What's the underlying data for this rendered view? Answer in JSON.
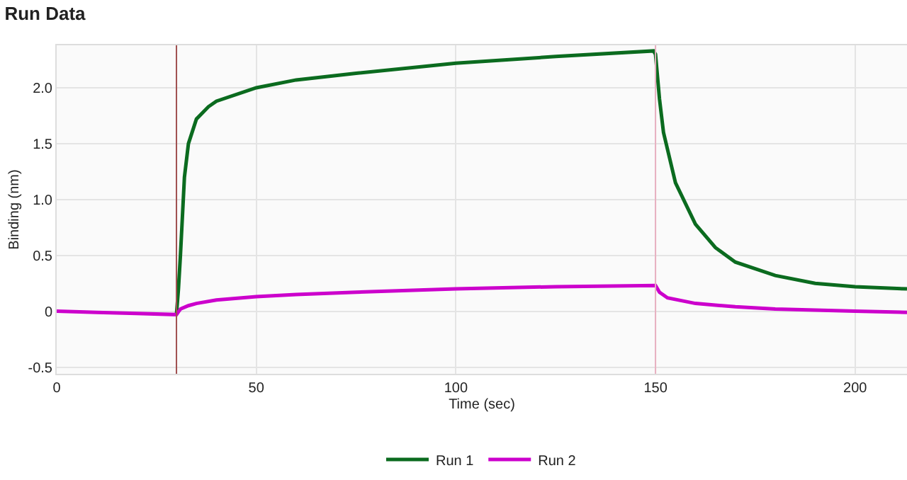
{
  "chart_data": {
    "type": "line",
    "title": "Run Data",
    "xlabel": "Time (sec)",
    "ylabel": "Binding (nm)",
    "xlim": [
      0,
      213
    ],
    "ylim": [
      -0.56,
      2.38
    ],
    "xticks": [
      0,
      50,
      100,
      150,
      200
    ],
    "yticks": [
      {
        "value": -0.5,
        "label": "-0.5"
      },
      0,
      {
        "value": 0.5,
        "label": "0.5"
      },
      {
        "value": 1.0,
        "label": "1.0"
      },
      {
        "value": 1.5,
        "label": "1.5"
      },
      {
        "value": 2.0,
        "label": "2.0"
      }
    ],
    "grid": true,
    "legend": "bottom",
    "marker": "none",
    "line_style": "solid",
    "ref_lines": [
      {
        "axis": "x",
        "value": 30,
        "color": "#a05050"
      },
      {
        "axis": "x",
        "value": 150,
        "color": "#e8b0c0"
      }
    ],
    "series": [
      {
        "name": "Run 1",
        "color": "#0b6b1f",
        "x": [
          30,
          30.5,
          31,
          32,
          33,
          35,
          38,
          40,
          50,
          60,
          75,
          100,
          125,
          149.5,
          150,
          151,
          152,
          155,
          160,
          165,
          170,
          180,
          190,
          200,
          213
        ],
        "values": [
          -0.03,
          0.2,
          0.5,
          1.2,
          1.5,
          1.72,
          1.83,
          1.88,
          2.0,
          2.07,
          2.13,
          2.22,
          2.28,
          2.33,
          2.3,
          1.9,
          1.6,
          1.15,
          0.78,
          0.57,
          0.44,
          0.32,
          0.25,
          0.22,
          0.2
        ]
      },
      {
        "name": "Run 2",
        "color": "#cc00cc",
        "x": [
          0,
          10,
          20,
          30,
          31,
          33,
          35,
          40,
          50,
          60,
          75,
          100,
          125,
          150,
          151,
          153,
          160,
          170,
          180,
          200,
          213
        ],
        "values": [
          0.0,
          -0.01,
          -0.02,
          -0.03,
          0.02,
          0.05,
          0.07,
          0.1,
          0.13,
          0.15,
          0.17,
          0.2,
          0.22,
          0.23,
          0.17,
          0.12,
          0.07,
          0.04,
          0.02,
          0.0,
          -0.01
        ]
      }
    ]
  }
}
